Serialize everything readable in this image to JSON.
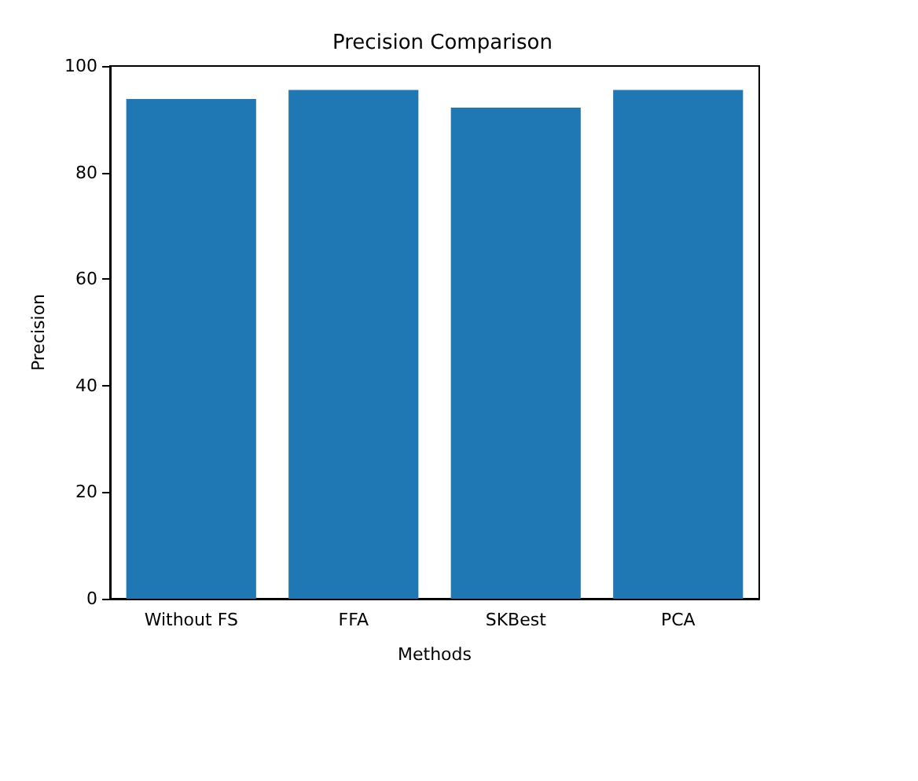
{
  "chart_data": {
    "type": "bar",
    "title": "Precision Comparison",
    "xlabel": "Methods",
    "ylabel": "Precision",
    "categories": [
      "Without FS",
      "FFA",
      "SKBest",
      "PCA"
    ],
    "values": [
      93.8,
      95.5,
      92.2,
      95.5
    ],
    "color": "#1f77b4",
    "ylim": [
      0,
      100
    ],
    "yticks": [
      0,
      20,
      40,
      60,
      80,
      100
    ],
    "grid": false
  }
}
